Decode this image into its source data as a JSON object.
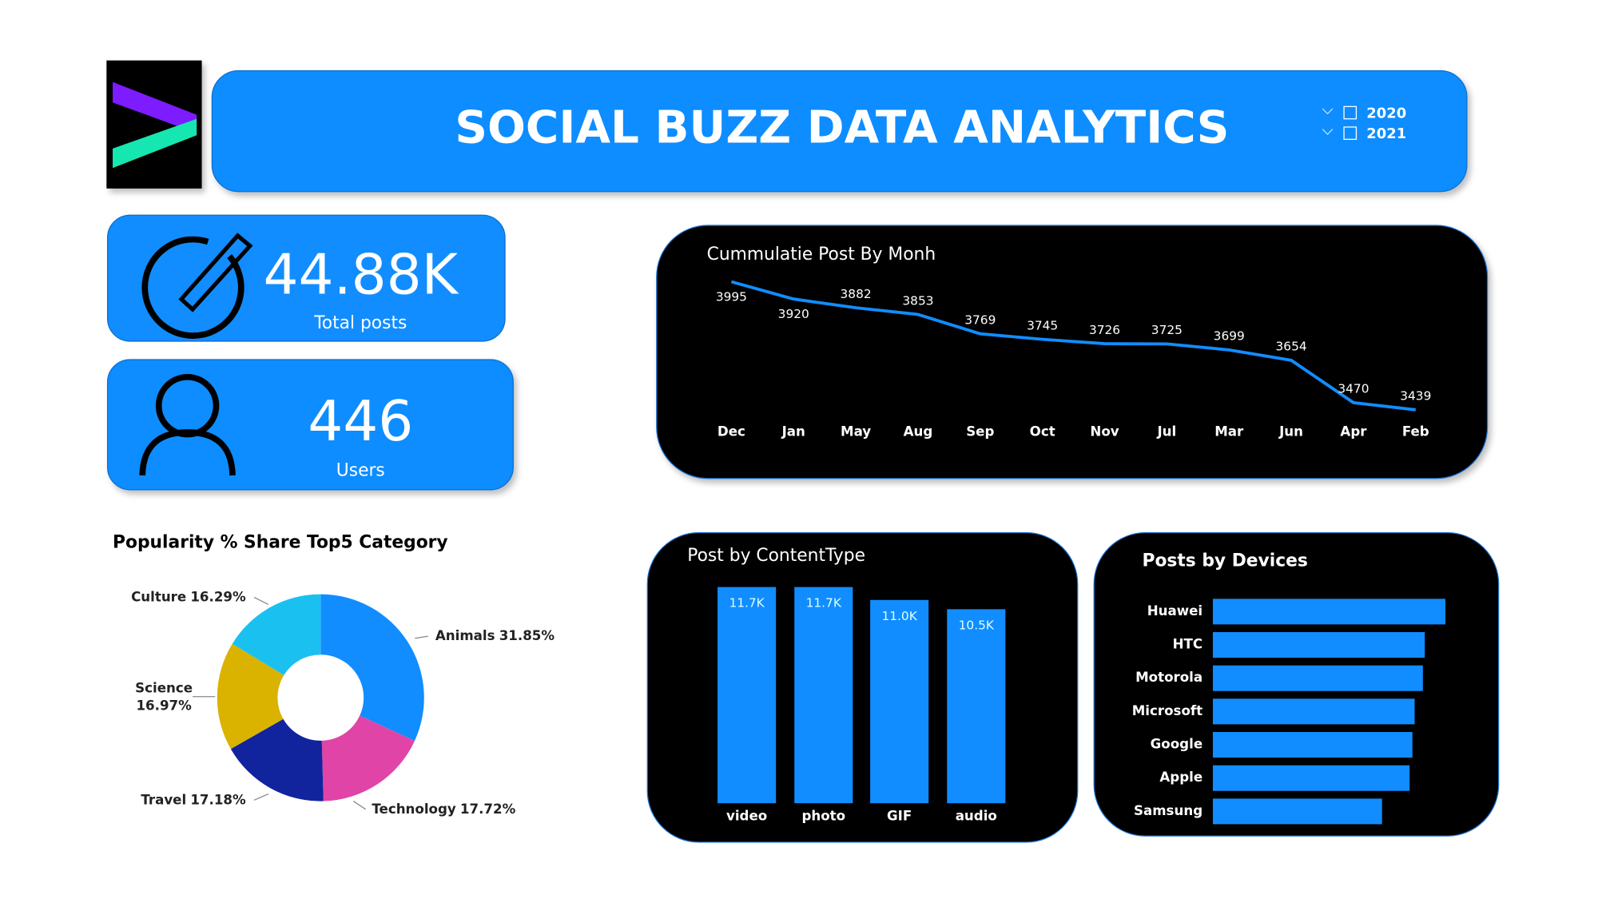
{
  "header": {
    "title": "SOCIAL BUZZ DATA ANALYTICS",
    "filters": [
      "2020",
      "2021"
    ]
  },
  "kpis": [
    {
      "value": "44.88K",
      "label": "Total posts"
    },
    {
      "value": "446",
      "label": "Users"
    }
  ],
  "chart_data": [
    {
      "type": "line",
      "title": "Cummulatie Post By Monh",
      "categories": [
        "Dec",
        "Jan",
        "May",
        "Aug",
        "Sep",
        "Oct",
        "Nov",
        "Jul",
        "Mar",
        "Jun",
        "Apr",
        "Feb"
      ],
      "values": [
        3995,
        3920,
        3882,
        3853,
        3769,
        3745,
        3726,
        3725,
        3699,
        3654,
        3470,
        3439
      ],
      "color": "#118dff"
    },
    {
      "type": "bar",
      "title": "Post by ContentType",
      "categories": [
        "video",
        "photo",
        "GIF",
        "audio"
      ],
      "values": [
        11700,
        11700,
        11000,
        10500
      ],
      "value_labels": [
        "11.7K",
        "11.7K",
        "11.0K",
        "10.5K"
      ],
      "color": "#118dff"
    },
    {
      "type": "bar",
      "orientation": "horizontal",
      "title": "Posts by Devices",
      "categories": [
        "Huawei",
        "HTC",
        "Motorola",
        "Microsoft",
        "Google",
        "Apple",
        "Samsung"
      ],
      "values": [
        7340,
        6690,
        6630,
        6370,
        6300,
        6210,
        5340
      ],
      "color": "#118dff"
    },
    {
      "type": "pie",
      "donut": true,
      "title": "Popularity % Share Top5 Category",
      "categories": [
        "Animals",
        "Technology",
        "Travel",
        "Science",
        "Culture"
      ],
      "values": [
        31.85,
        17.72,
        17.18,
        16.97,
        16.29
      ],
      "value_labels": [
        "31.85%",
        "17.72%",
        "17.18%",
        "16.97%",
        "16.29%"
      ],
      "colors": [
        "#118dff",
        "#e044a7",
        "#12239e",
        "#d9b300",
        "#1ac1f0"
      ]
    }
  ]
}
